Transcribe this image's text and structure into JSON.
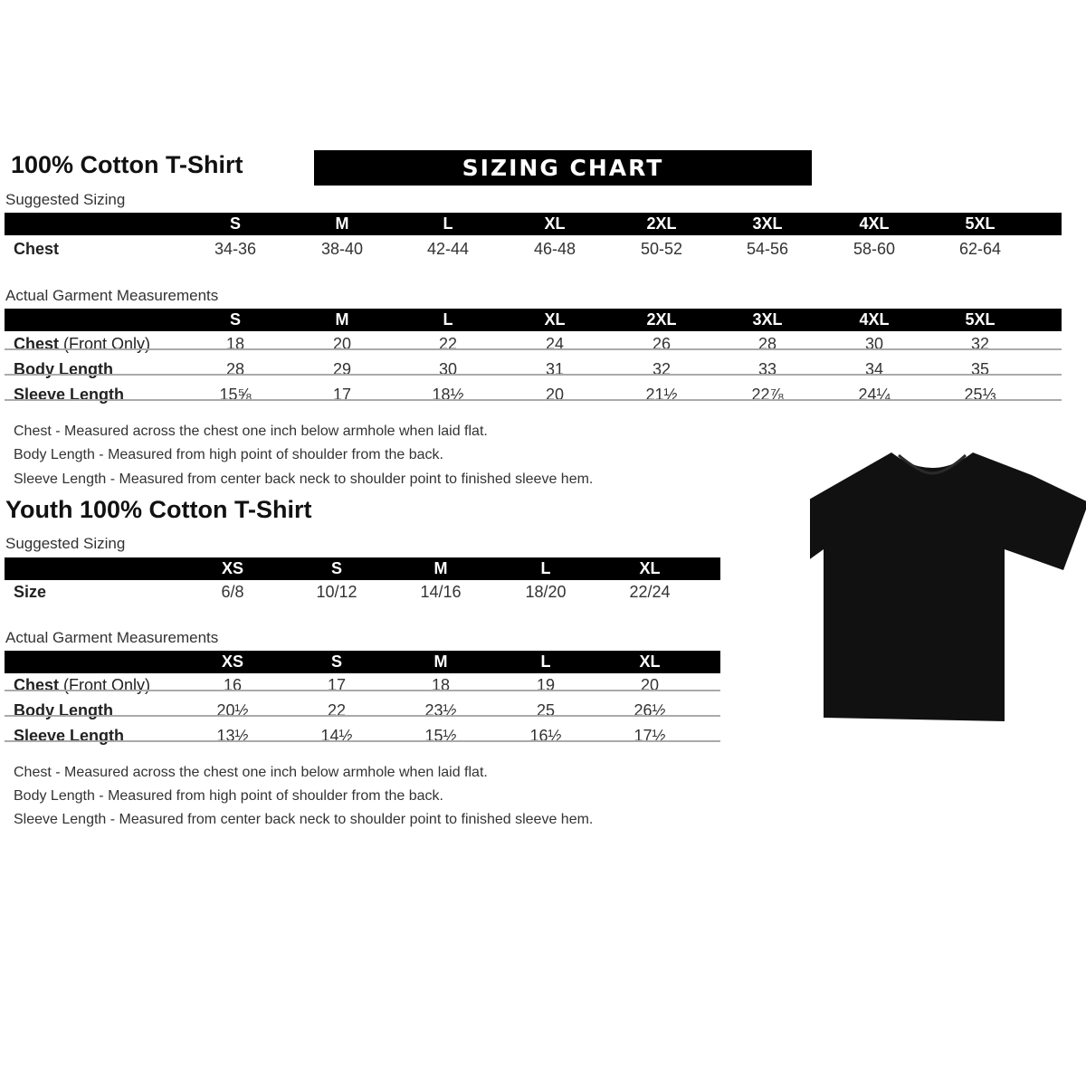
{
  "adult": {
    "title": "100% Cotton T-Shirt",
    "banner": "SIZING CHART",
    "suggested": {
      "label": "Suggested Sizing",
      "sizes": [
        "S",
        "M",
        "L",
        "XL",
        "2XL",
        "3XL",
        "4XL",
        "5XL"
      ],
      "rows": [
        {
          "label": "Chest",
          "values": [
            "34-36",
            "38-40",
            "42-44",
            "46-48",
            "50-52",
            "54-56",
            "58-60",
            "62-64"
          ]
        }
      ]
    },
    "actual": {
      "label": "Actual Garment Measurements",
      "sizes": [
        "S",
        "M",
        "L",
        "XL",
        "2XL",
        "3XL",
        "4XL",
        "5XL"
      ],
      "rows": [
        {
          "label": "Chest",
          "label_extra": " (Front Only)",
          "values": [
            "18",
            "20",
            "22",
            "24",
            "26",
            "28",
            "30",
            "32"
          ]
        },
        {
          "label": "Body Length",
          "values": [
            "28",
            "29",
            "30",
            "31",
            "32",
            "33",
            "34",
            "35"
          ]
        },
        {
          "label": "Sleeve Length",
          "values": [
            "15⅝",
            "17",
            "18½",
            "20",
            "21½",
            "22⅞",
            "24¼",
            "25⅓"
          ]
        }
      ]
    },
    "notes": [
      "Chest - Measured across the chest one inch below armhole when laid flat.",
      "Body Length - Measured from high point of shoulder from the back.",
      "Sleeve Length - Measured from center back neck to shoulder point to finished sleeve hem."
    ]
  },
  "youth": {
    "title": "Youth 100% Cotton T-Shirt",
    "suggested": {
      "label": "Suggested Sizing",
      "sizes": [
        "XS",
        "S",
        "M",
        "L",
        "XL"
      ],
      "rows": [
        {
          "label": "Size",
          "values": [
            "6/8",
            "10/12",
            "14/16",
            "18/20",
            "22/24"
          ]
        }
      ]
    },
    "actual": {
      "label": "Actual Garment Measurements",
      "sizes": [
        "XS",
        "S",
        "M",
        "L",
        "XL"
      ],
      "rows": [
        {
          "label": "Chest",
          "label_extra": " (Front Only)",
          "values": [
            "16",
            "17",
            "18",
            "19",
            "20"
          ]
        },
        {
          "label": "Body Length",
          "values": [
            "20½",
            "22",
            "23½",
            "25",
            "26½"
          ]
        },
        {
          "label": "Sleeve Length",
          "values": [
            "13½",
            "14½",
            "15½",
            "16½",
            "17½"
          ]
        }
      ]
    },
    "notes": [
      "Chest - Measured across the chest one inch below armhole when laid flat.",
      "Body Length - Measured from high point of shoulder from the back.",
      "Sleeve Length - Measured from center back neck to shoulder point to finished sleeve hem."
    ]
  },
  "tshirt_color": "#111111"
}
